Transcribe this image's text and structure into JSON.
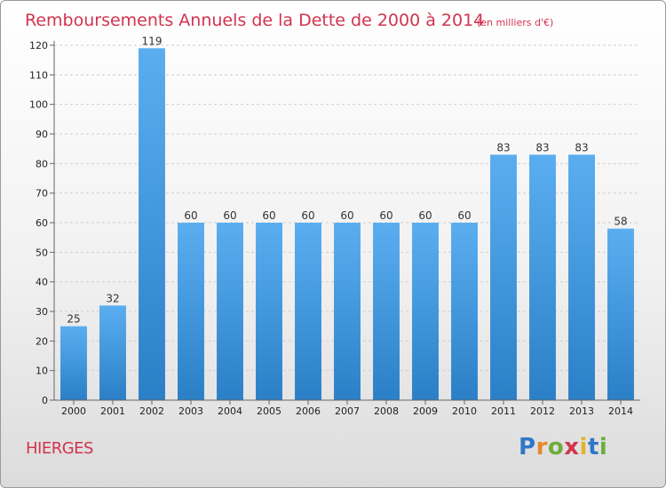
{
  "chart_data": {
    "type": "bar",
    "title": "Remboursements Annuels de la Dette de 2000 à 2014",
    "subtitle": "(en milliers d'€)",
    "categories": [
      "2000",
      "2001",
      "2002",
      "2003",
      "2004",
      "2005",
      "2006",
      "2007",
      "2008",
      "2009",
      "2010",
      "2011",
      "2012",
      "2013",
      "2014"
    ],
    "values": [
      25,
      32,
      119,
      60,
      60,
      60,
      60,
      60,
      60,
      60,
      60,
      83,
      83,
      83,
      58
    ],
    "ylim": [
      0,
      120
    ],
    "yticks": [
      0,
      10,
      20,
      30,
      40,
      50,
      60,
      70,
      80,
      90,
      100,
      110,
      120
    ],
    "grid": true,
    "bar_color": "#3f93d9"
  },
  "footer": {
    "commune": "HIERGES",
    "logo_letters": [
      {
        "ch": "P",
        "color": "#2f77c9"
      },
      {
        "ch": "r",
        "color": "#e4892c"
      },
      {
        "ch": "o",
        "color": "#6cae3b"
      },
      {
        "ch": "x",
        "color": "#d2334f"
      },
      {
        "ch": "i",
        "color": "#e4b32c"
      },
      {
        "ch": "t",
        "color": "#2f77c9"
      },
      {
        "ch": "i",
        "color": "#6cae3b"
      }
    ]
  }
}
